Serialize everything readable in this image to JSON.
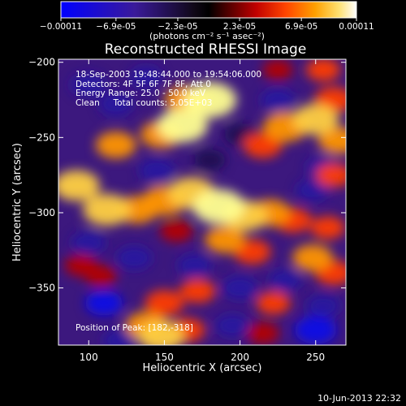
{
  "colorbar": {
    "tick_labels": [
      "-0.00011",
      "-6.9e-05",
      "-2.3e-05",
      "2.3e-05",
      "6.9e-05",
      "0.00011"
    ],
    "tick_values": [
      -0.00011,
      -6.9e-05,
      -2.3e-05,
      2.3e-05,
      6.9e-05,
      0.00011
    ],
    "range": [
      -0.00011,
      0.00011
    ],
    "unit_label": "(photons cm⁻² s⁻¹ asec⁻²)"
  },
  "chart_data": {
    "type": "heatmap",
    "title": "Reconstructed RHESSI Image",
    "xlabel": "Heliocentric X (arcsec)",
    "ylabel": "Heliocentric Y (arcsec)",
    "xlim": [
      80,
      270
    ],
    "ylim": [
      -388,
      -198
    ],
    "x_ticks": [
      100,
      150,
      200,
      250
    ],
    "y_ticks": [
      -200,
      -250,
      -300,
      -350
    ],
    "annotations": [
      "18-Sep-2003 19:48:44.000 to 19:54:06.000",
      "Detectors: 4F 5F 6F 7F 8F, Att 0",
      "Energy Range: 25.0 - 50.0 keV",
      "Clean     Total counts: 5.05E+03"
    ],
    "peak_label": "Position of Peak: [182,-318]",
    "peak_position": [
      182,
      -318
    ],
    "colormap": "blue-purple-red-orange-yellow-white",
    "blobs": [
      {
        "x": 180,
        "y": -225,
        "v": 1.0
      },
      {
        "x": 165,
        "y": -225,
        "v": 0.7
      },
      {
        "x": 162,
        "y": -242,
        "v": 0.9
      },
      {
        "x": 148,
        "y": -248,
        "v": 0.6
      },
      {
        "x": 118,
        "y": -255,
        "v": 0.55
      },
      {
        "x": 215,
        "y": -255,
        "v": 0.5
      },
      {
        "x": 230,
        "y": -243,
        "v": 0.7
      },
      {
        "x": 250,
        "y": -238,
        "v": 0.75
      },
      {
        "x": 262,
        "y": -225,
        "v": 0.5
      },
      {
        "x": 265,
        "y": -252,
        "v": 0.55
      },
      {
        "x": 262,
        "y": -275,
        "v": 0.4
      },
      {
        "x": 255,
        "y": -205,
        "v": 0.35
      },
      {
        "x": 225,
        "y": -205,
        "v": 0.2
      },
      {
        "x": 92,
        "y": -282,
        "v": 0.75
      },
      {
        "x": 112,
        "y": -298,
        "v": 0.8
      },
      {
        "x": 132,
        "y": -298,
        "v": 0.6
      },
      {
        "x": 150,
        "y": -292,
        "v": 0.7
      },
      {
        "x": 168,
        "y": -287,
        "v": 0.8
      },
      {
        "x": 186,
        "y": -296,
        "v": 0.95
      },
      {
        "x": 203,
        "y": -302,
        "v": 0.75
      },
      {
        "x": 220,
        "y": -300,
        "v": 0.55
      },
      {
        "x": 235,
        "y": -305,
        "v": 0.45
      },
      {
        "x": 258,
        "y": -310,
        "v": 0.35
      },
      {
        "x": 190,
        "y": -318,
        "v": 0.55
      },
      {
        "x": 158,
        "y": -312,
        "v": 0.3
      },
      {
        "x": 208,
        "y": -326,
        "v": 0.45
      },
      {
        "x": 248,
        "y": -330,
        "v": 0.55
      },
      {
        "x": 262,
        "y": -340,
        "v": 0.45
      },
      {
        "x": 95,
        "y": -335,
        "v": 0.3
      },
      {
        "x": 108,
        "y": -342,
        "v": 0.25
      },
      {
        "x": 150,
        "y": -360,
        "v": 0.5
      },
      {
        "x": 172,
        "y": -352,
        "v": 0.4
      },
      {
        "x": 138,
        "y": -375,
        "v": 0.6
      },
      {
        "x": 148,
        "y": -382,
        "v": 0.75
      },
      {
        "x": 165,
        "y": -378,
        "v": 0.4
      },
      {
        "x": 222,
        "y": -360,
        "v": 0.35
      },
      {
        "x": 215,
        "y": -380,
        "v": 0.3
      },
      {
        "x": 118,
        "y": -228,
        "v": -0.35
      },
      {
        "x": 100,
        "y": -215,
        "v": -0.4
      },
      {
        "x": 138,
        "y": -210,
        "v": -0.3
      },
      {
        "x": 225,
        "y": -225,
        "v": -0.35
      },
      {
        "x": 200,
        "y": -248,
        "v": -0.25
      },
      {
        "x": 145,
        "y": -272,
        "v": -0.4
      },
      {
        "x": 180,
        "y": -265,
        "v": -0.25
      },
      {
        "x": 248,
        "y": -285,
        "v": -0.3
      },
      {
        "x": 255,
        "y": -270,
        "v": -0.35
      },
      {
        "x": 100,
        "y": -320,
        "v": -0.35
      },
      {
        "x": 130,
        "y": -330,
        "v": -0.4
      },
      {
        "x": 170,
        "y": -335,
        "v": -0.35
      },
      {
        "x": 230,
        "y": -345,
        "v": -0.3
      },
      {
        "x": 110,
        "y": -360,
        "v": -0.45
      },
      {
        "x": 200,
        "y": -350,
        "v": -0.4
      },
      {
        "x": 255,
        "y": -362,
        "v": -0.35
      },
      {
        "x": 250,
        "y": -378,
        "v": -0.6
      },
      {
        "x": 195,
        "y": -375,
        "v": -0.35
      },
      {
        "x": 120,
        "y": -385,
        "v": -0.3
      }
    ]
  },
  "footer": {
    "date": "10-Jun-2013 22:32"
  }
}
